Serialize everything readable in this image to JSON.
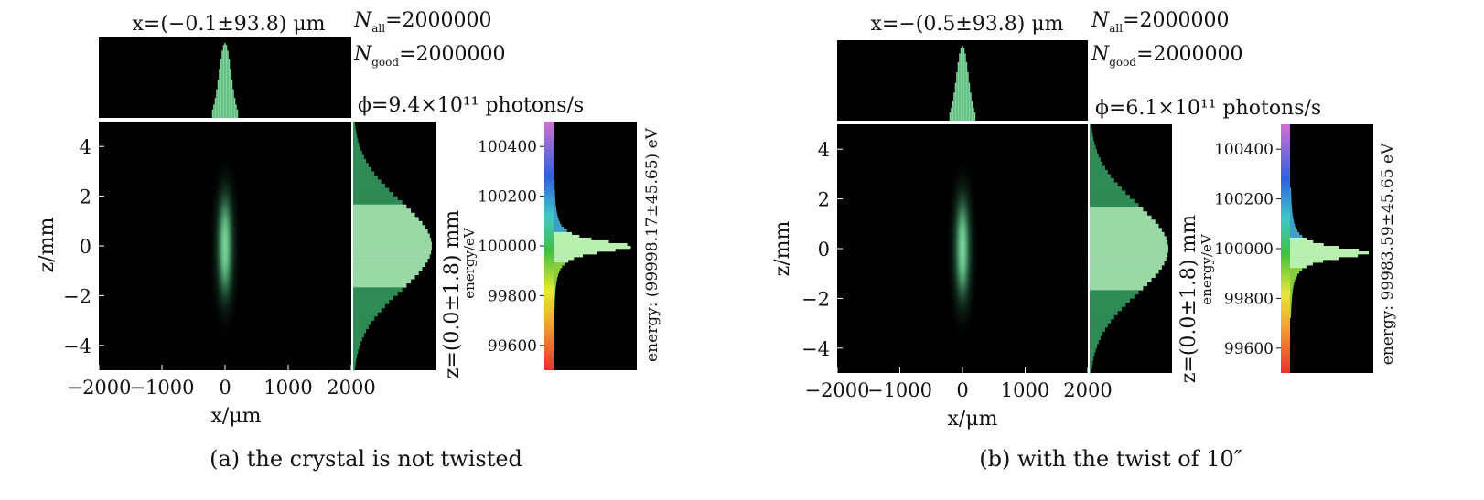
{
  "colors": {
    "background": "#ffffff",
    "plot_bg": "#000000",
    "beam": "#7fe0a0",
    "hist": "#8fd8a0"
  },
  "panels": [
    {
      "caption": "(a)  the crystal is not twisted",
      "x_title": "x=(−0.1±93.8) μm",
      "n_all": "N_all=2000000",
      "n_good": "N_good=2000000",
      "flux": "ϕ=9.4×10¹¹ photons/s",
      "z_title": "z=(0.0±1.8) mm",
      "energy_title": "energy: (99998.17±45.65) eV",
      "energy_label": "energy/eV",
      "x_label": "x/μm",
      "z_label": "z/mm"
    },
    {
      "caption": "(b) with the twist of 10″",
      "x_title": "x=−(0.5±93.8) μm",
      "n_all": "N_all=2000000",
      "n_good": "N_good=2000000",
      "flux": "ϕ=6.1×10¹¹ photons/s",
      "z_title": "z=(0.0±1.8) mm",
      "energy_title": "energy: 99983.59±45.65 eV",
      "energy_label": "energy/eV",
      "x_label": "x/μm",
      "z_label": "z/mm"
    }
  ],
  "chart_data": [
    {
      "type": "heatmap",
      "title": "x=(−0.1±93.8) μm",
      "xlabel": "x/μm",
      "ylabel": "z/mm",
      "x_ticks": [
        "−2000",
        "−1000",
        "0",
        "1000",
        "2000"
      ],
      "x_tick_values": [
        -2000,
        -1000,
        0,
        1000,
        2000
      ],
      "z_ticks": [
        "4",
        "2",
        "0",
        "−2",
        "−4"
      ],
      "z_tick_values": [
        4,
        2,
        0,
        -2,
        -4
      ],
      "xlim": [
        -2000,
        2000
      ],
      "zlim": [
        -5,
        5
      ],
      "beam": {
        "x_center": -0.1,
        "x_sigma": 93.8,
        "z_center": 0.0,
        "z_sigma": 1.8
      },
      "energy": {
        "ylabel": "energy/eV",
        "ticks": [
          "100400",
          "100200",
          "100000",
          "99800",
          "99600"
        ],
        "tick_values": [
          100400,
          100200,
          100000,
          99800,
          99600
        ],
        "ylim": [
          99500,
          100500
        ],
        "center": 99998.17,
        "sigma": 45.65
      }
    },
    {
      "type": "heatmap",
      "title": "x=−(0.5±93.8) μm",
      "xlabel": "x/μm",
      "ylabel": "z/mm",
      "x_ticks": [
        "−2000",
        "−1000",
        "0",
        "1000",
        "2000"
      ],
      "x_tick_values": [
        -2000,
        -1000,
        0,
        1000,
        2000
      ],
      "z_ticks": [
        "4",
        "2",
        "0",
        "−2",
        "−4"
      ],
      "z_tick_values": [
        4,
        2,
        0,
        -2,
        -4
      ],
      "xlim": [
        -2000,
        2000
      ],
      "zlim": [
        -5,
        5
      ],
      "beam": {
        "x_center": -0.5,
        "x_sigma": 93.8,
        "z_center": 0.0,
        "z_sigma": 1.8
      },
      "energy": {
        "ylabel": "energy/eV",
        "ticks": [
          "100400",
          "100200",
          "100000",
          "99800",
          "99600"
        ],
        "tick_values": [
          100400,
          100200,
          100000,
          99800,
          99600
        ],
        "ylim": [
          99500,
          100500
        ],
        "center": 99983.59,
        "sigma": 45.65
      }
    }
  ]
}
